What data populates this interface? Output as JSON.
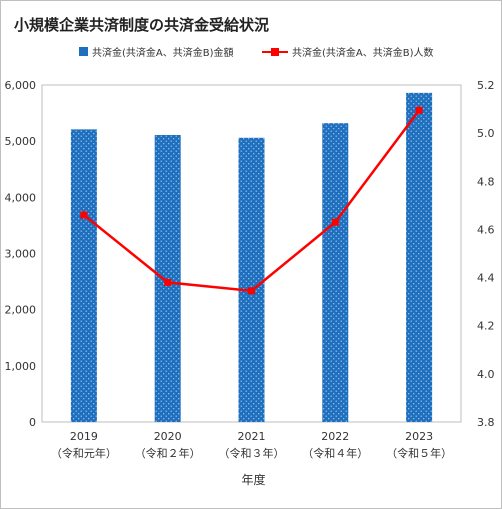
{
  "chart_data": {
    "type": "bar",
    "title": "小規模企業共済制度の共済金受給状況",
    "xlabel": "年度",
    "categories": [
      "2019",
      "2020",
      "2021",
      "2022",
      "2023"
    ],
    "category_sublabels": [
      "（令和元年）",
      "（令和２年）",
      "（令和３年）",
      "（令和４年）",
      "（令和５年）"
    ],
    "series": [
      {
        "name": "共済金(共済金A、共済金B)金額",
        "type": "bar",
        "axis": "left",
        "color": "#1f6fbf",
        "values": [
          5210,
          5110,
          5060,
          5320,
          5860
        ]
      },
      {
        "name": "共済金(共済金A、共済金B)人数",
        "type": "line",
        "axis": "right",
        "color": "#ff0000",
        "marker": "square",
        "values": [
          4.66,
          4.38,
          4.345,
          4.63,
          5.095
        ]
      }
    ],
    "y_left": {
      "ylim": [
        0,
        6000
      ],
      "ticks": [
        "0",
        "1,000",
        "2,000",
        "3,000",
        "4,000",
        "5,000",
        "6,000"
      ],
      "tick_values": [
        0,
        1000,
        2000,
        3000,
        4000,
        5000,
        6000
      ]
    },
    "y_right": {
      "ylim": [
        3.8,
        5.2
      ],
      "ticks": [
        "3.8",
        "4.0",
        "4.2",
        "4.4",
        "4.6",
        "4.8",
        "5.0",
        "5.2"
      ],
      "tick_values": [
        3.8,
        4.0,
        4.2,
        4.4,
        4.6,
        4.8,
        5.0,
        5.2
      ]
    },
    "grid": false,
    "legend_position": "top"
  }
}
